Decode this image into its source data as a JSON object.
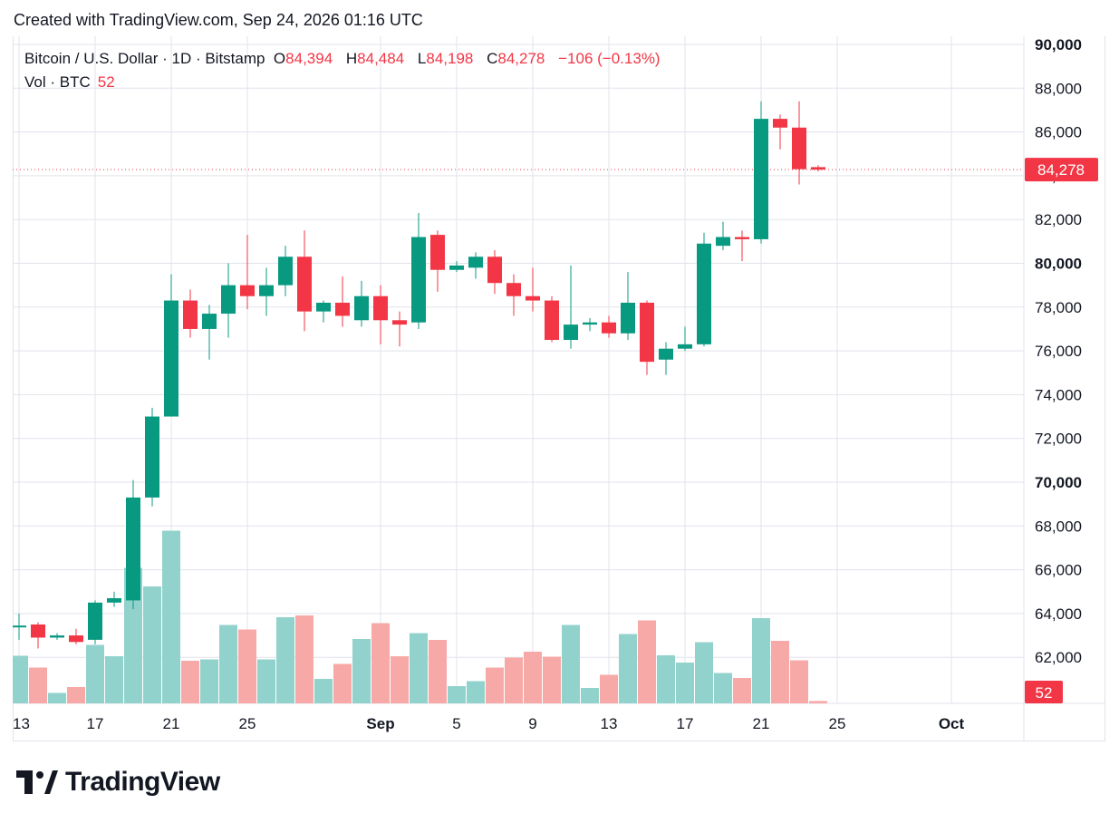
{
  "header": {
    "created_text": "Created with TradingView.com, Sep 24, 2026 01:16 UTC"
  },
  "legend": {
    "symbol": "Bitcoin / U.S. Dollar · 1D · Bitstamp",
    "o_label": "O",
    "o_value": "84,394",
    "h_label": "H",
    "h_value": "84,484",
    "l_label": "L",
    "l_value": "84,198",
    "c_label": "C",
    "c_value": "84,278",
    "change": "−106 (−0.13%)"
  },
  "volume_legend": {
    "label": "Vol · BTC",
    "value": "52"
  },
  "price_tag": "84,278",
  "volume_tag": "52",
  "logo_text": "TradingView",
  "colors": {
    "up": "#089981",
    "down": "#f23645",
    "vol_up": "#92d2cc",
    "vol_down": "#f7a9a7"
  },
  "chart_data": {
    "type": "candlestick",
    "y_axis": {
      "min": 60000,
      "max": 90000,
      "ticks": [
        "62,000",
        "64,000",
        "66,000",
        "68,000",
        "70,000",
        "72,000",
        "74,000",
        "76,000",
        "78,000",
        "80,000",
        "82,000",
        "84,000",
        "86,000",
        "88,000",
        "90,000"
      ],
      "bold_ticks": [
        "70,000",
        "80,000",
        "90,000"
      ]
    },
    "x_ticks": [
      {
        "label": "13",
        "day": 0
      },
      {
        "label": "17",
        "day": 4
      },
      {
        "label": "21",
        "day": 8
      },
      {
        "label": "25",
        "day": 12
      },
      {
        "label": "Sep",
        "day": 19,
        "bold": true
      },
      {
        "label": "5",
        "day": 23
      },
      {
        "label": "9",
        "day": 27
      },
      {
        "label": "13",
        "day": 31
      },
      {
        "label": "17",
        "day": 35
      },
      {
        "label": "21",
        "day": 39
      },
      {
        "label": "25",
        "day": 43
      },
      {
        "label": "Oct",
        "day": 49,
        "bold": true
      }
    ],
    "last_close": 84278,
    "candles": [
      {
        "day": 0,
        "o": 63400,
        "h": 64000,
        "l": 62800,
        "c": 63450
      },
      {
        "day": 1,
        "o": 63500,
        "h": 63600,
        "l": 62400,
        "c": 62900
      },
      {
        "day": 2,
        "o": 62900,
        "h": 63100,
        "l": 62800,
        "c": 63000
      },
      {
        "day": 3,
        "o": 63000,
        "h": 63300,
        "l": 62600,
        "c": 62700
      },
      {
        "day": 4,
        "o": 62800,
        "h": 64600,
        "l": 62600,
        "c": 64500
      },
      {
        "day": 5,
        "o": 64500,
        "h": 65000,
        "l": 64300,
        "c": 64700
      },
      {
        "day": 6,
        "o": 64600,
        "h": 70100,
        "l": 64200,
        "c": 69300
      },
      {
        "day": 7,
        "o": 69300,
        "h": 73400,
        "l": 68900,
        "c": 73000
      },
      {
        "day": 8,
        "o": 73000,
        "h": 79500,
        "l": 73000,
        "c": 78300
      },
      {
        "day": 9,
        "o": 78300,
        "h": 78800,
        "l": 76600,
        "c": 77000
      },
      {
        "day": 10,
        "o": 77000,
        "h": 78100,
        "l": 75600,
        "c": 77700
      },
      {
        "day": 11,
        "o": 77700,
        "h": 80000,
        "l": 76600,
        "c": 79000
      },
      {
        "day": 12,
        "o": 79000,
        "h": 81300,
        "l": 77900,
        "c": 78500
      },
      {
        "day": 13,
        "o": 78500,
        "h": 79800,
        "l": 77600,
        "c": 79000
      },
      {
        "day": 14,
        "o": 79000,
        "h": 80800,
        "l": 78500,
        "c": 80300
      },
      {
        "day": 15,
        "o": 80300,
        "h": 81500,
        "l": 76900,
        "c": 77800
      },
      {
        "day": 16,
        "o": 77800,
        "h": 78300,
        "l": 77300,
        "c": 78200
      },
      {
        "day": 17,
        "o": 78200,
        "h": 79400,
        "l": 77100,
        "c": 77600
      },
      {
        "day": 18,
        "o": 77400,
        "h": 79200,
        "l": 77100,
        "c": 78500
      },
      {
        "day": 19,
        "o": 78500,
        "h": 79000,
        "l": 76300,
        "c": 77400
      },
      {
        "day": 20,
        "o": 77400,
        "h": 77800,
        "l": 76200,
        "c": 77200
      },
      {
        "day": 21,
        "o": 77300,
        "h": 82300,
        "l": 77000,
        "c": 81200
      },
      {
        "day": 22,
        "o": 81300,
        "h": 81500,
        "l": 78700,
        "c": 79700
      },
      {
        "day": 23,
        "o": 79700,
        "h": 80100,
        "l": 79600,
        "c": 79900
      },
      {
        "day": 24,
        "o": 79800,
        "h": 80500,
        "l": 79300,
        "c": 80300
      },
      {
        "day": 25,
        "o": 80300,
        "h": 80600,
        "l": 78600,
        "c": 79100
      },
      {
        "day": 26,
        "o": 79100,
        "h": 79500,
        "l": 77600,
        "c": 78500
      },
      {
        "day": 27,
        "o": 78500,
        "h": 79800,
        "l": 77800,
        "c": 78300
      },
      {
        "day": 28,
        "o": 78300,
        "h": 78500,
        "l": 76400,
        "c": 76500
      },
      {
        "day": 29,
        "o": 76500,
        "h": 79900,
        "l": 76100,
        "c": 77200
      },
      {
        "day": 30,
        "o": 77200,
        "h": 77500,
        "l": 76900,
        "c": 77300
      },
      {
        "day": 31,
        "o": 77300,
        "h": 77600,
        "l": 76600,
        "c": 76800
      },
      {
        "day": 32,
        "o": 76800,
        "h": 79600,
        "l": 76500,
        "c": 78200
      },
      {
        "day": 33,
        "o": 78200,
        "h": 78300,
        "l": 74900,
        "c": 75500
      },
      {
        "day": 34,
        "o": 75600,
        "h": 76400,
        "l": 74900,
        "c": 76100
      },
      {
        "day": 35,
        "o": 76100,
        "h": 77100,
        "l": 76000,
        "c": 76300
      },
      {
        "day": 36,
        "o": 76300,
        "h": 81400,
        "l": 76200,
        "c": 80900
      },
      {
        "day": 37,
        "o": 80800,
        "h": 81900,
        "l": 80600,
        "c": 81200
      },
      {
        "day": 38,
        "o": 81200,
        "h": 81500,
        "l": 80100,
        "c": 81100
      },
      {
        "day": 39,
        "o": 81100,
        "h": 87400,
        "l": 80900,
        "c": 86600
      },
      {
        "day": 40,
        "o": 86600,
        "h": 86800,
        "l": 85200,
        "c": 86200
      },
      {
        "day": 41,
        "o": 86200,
        "h": 87400,
        "l": 83600,
        "c": 84300
      },
      {
        "day": 42,
        "o": 84394,
        "h": 84484,
        "l": 84198,
        "c": 84278
      }
    ],
    "volume": [
      {
        "day": 0,
        "dir": "up",
        "v": 1050
      },
      {
        "day": 1,
        "dir": "down",
        "v": 790
      },
      {
        "day": 2,
        "dir": "up",
        "v": 230
      },
      {
        "day": 3,
        "dir": "down",
        "v": 360
      },
      {
        "day": 4,
        "dir": "up",
        "v": 1290
      },
      {
        "day": 5,
        "dir": "up",
        "v": 1040
      },
      {
        "day": 6,
        "dir": "up",
        "v": 2990
      },
      {
        "day": 7,
        "dir": "up",
        "v": 2580
      },
      {
        "day": 8,
        "dir": "up",
        "v": 3810
      },
      {
        "day": 9,
        "dir": "down",
        "v": 940
      },
      {
        "day": 10,
        "dir": "up",
        "v": 970
      },
      {
        "day": 11,
        "dir": "up",
        "v": 1730
      },
      {
        "day": 12,
        "dir": "down",
        "v": 1630
      },
      {
        "day": 13,
        "dir": "up",
        "v": 970
      },
      {
        "day": 14,
        "dir": "up",
        "v": 1900
      },
      {
        "day": 15,
        "dir": "down",
        "v": 1940
      },
      {
        "day": 16,
        "dir": "up",
        "v": 540
      },
      {
        "day": 17,
        "dir": "down",
        "v": 870
      },
      {
        "day": 18,
        "dir": "up",
        "v": 1420
      },
      {
        "day": 19,
        "dir": "down",
        "v": 1770
      },
      {
        "day": 20,
        "dir": "down",
        "v": 1040
      },
      {
        "day": 21,
        "dir": "up",
        "v": 1550
      },
      {
        "day": 22,
        "dir": "down",
        "v": 1400
      },
      {
        "day": 23,
        "dir": "up",
        "v": 380
      },
      {
        "day": 24,
        "dir": "up",
        "v": 490
      },
      {
        "day": 25,
        "dir": "down",
        "v": 790
      },
      {
        "day": 26,
        "dir": "down",
        "v": 1010
      },
      {
        "day": 27,
        "dir": "down",
        "v": 1140
      },
      {
        "day": 28,
        "dir": "down",
        "v": 1030
      },
      {
        "day": 29,
        "dir": "up",
        "v": 1730
      },
      {
        "day": 30,
        "dir": "up",
        "v": 340
      },
      {
        "day": 31,
        "dir": "down",
        "v": 630
      },
      {
        "day": 32,
        "dir": "up",
        "v": 1530
      },
      {
        "day": 33,
        "dir": "down",
        "v": 1830
      },
      {
        "day": 34,
        "dir": "up",
        "v": 1060
      },
      {
        "day": 35,
        "dir": "up",
        "v": 900
      },
      {
        "day": 36,
        "dir": "up",
        "v": 1350
      },
      {
        "day": 37,
        "dir": "up",
        "v": 670
      },
      {
        "day": 38,
        "dir": "down",
        "v": 560
      },
      {
        "day": 39,
        "dir": "up",
        "v": 1880
      },
      {
        "day": 40,
        "dir": "down",
        "v": 1380
      },
      {
        "day": 41,
        "dir": "down",
        "v": 950
      },
      {
        "day": 42,
        "dir": "down",
        "v": 52
      }
    ]
  }
}
